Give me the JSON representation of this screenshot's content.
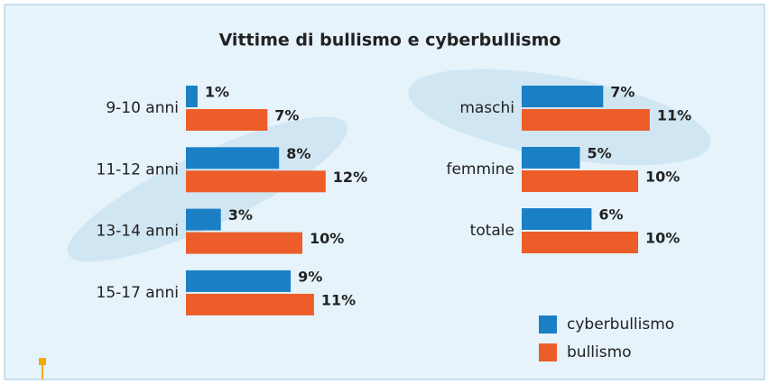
{
  "title": "Vittime di bullismo e cyberbullismo",
  "chart_data": [
    {
      "type": "hbar",
      "categories": [
        "9-10 anni",
        "11-12 anni",
        "13-14 anni",
        "15-17 anni"
      ],
      "xlim": [
        0,
        20
      ],
      "series": [
        {
          "name": "cyberbullismo",
          "color": "#1b7fc6",
          "values": [
            1,
            8,
            3,
            9
          ],
          "value_labels": [
            "1%",
            "8%",
            "3%",
            "9%"
          ]
        },
        {
          "name": "bullismo",
          "color": "#ec5d29",
          "values": [
            7,
            12,
            10,
            11
          ],
          "value_labels": [
            "7%",
            "12%",
            "10%",
            "11%"
          ]
        }
      ]
    },
    {
      "type": "hbar",
      "categories": [
        "maschi",
        "femmine",
        "totale"
      ],
      "xlim": [
        0,
        20
      ],
      "series": [
        {
          "name": "cyberbullismo",
          "color": "#1b7fc6",
          "values": [
            7,
            5,
            6
          ],
          "value_labels": [
            "7%",
            "5%",
            "6%"
          ]
        },
        {
          "name": "bullismo",
          "color": "#ec5d29",
          "values": [
            11,
            10,
            10
          ],
          "value_labels": [
            "11%",
            "10%",
            "10%"
          ]
        }
      ]
    }
  ]
}
